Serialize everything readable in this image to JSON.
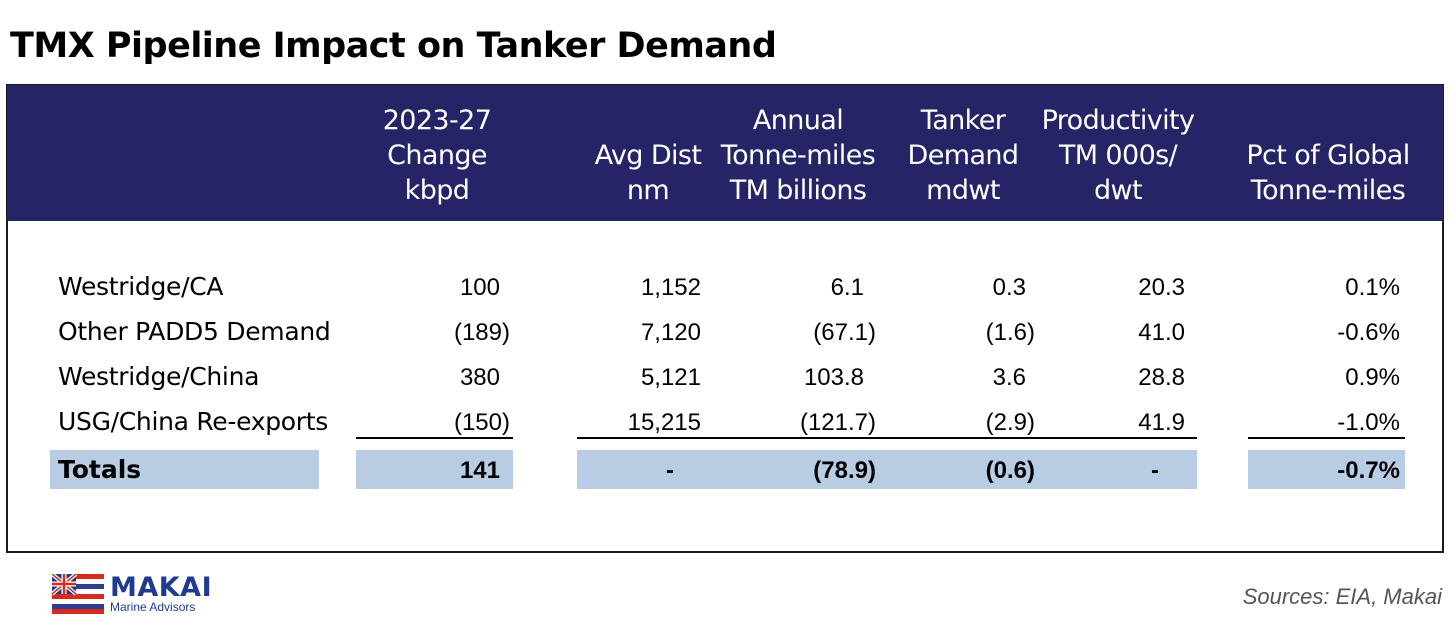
{
  "title": "TMX Pipeline Impact on Tanker Demand",
  "colors": {
    "header_bg": "#242467",
    "totals_bg": "#b8cce4"
  },
  "columns": [
    {
      "lines": [
        "2023-27",
        "Change",
        "kbpd"
      ]
    },
    {
      "lines": [
        "Avg Dist",
        "nm"
      ]
    },
    {
      "lines": [
        "Annual",
        "Tonne-miles",
        "TM billions"
      ]
    },
    {
      "lines": [
        "Tanker",
        "Demand",
        "mdwt"
      ]
    },
    {
      "lines": [
        "Productivity",
        "TM 000s/",
        "dwt"
      ]
    },
    {
      "lines": [
        "Pct of Global",
        "Tonne-miles"
      ]
    }
  ],
  "rows": [
    {
      "label": "Westridge/CA",
      "values": [
        "100",
        "1,152",
        "6.1",
        "0.3",
        "20.3",
        "0.1%"
      ]
    },
    {
      "label": "Other PADD5 Demand",
      "values": [
        "(189)",
        "7,120",
        "(67.1)",
        "(1.6)",
        "41.0",
        "-0.6%"
      ]
    },
    {
      "label": "Westridge/China",
      "values": [
        "380",
        "5,121",
        "103.8",
        "3.6",
        "28.8",
        "0.9%"
      ]
    },
    {
      "label": "USG/China Re-exports",
      "values": [
        "(150)",
        "15,215",
        "(121.7)",
        "(2.9)",
        "41.9",
        "-1.0%"
      ]
    }
  ],
  "totals": {
    "label": "Totals",
    "values": [
      "141",
      "-",
      "(78.9)",
      "(0.6)",
      "-",
      "-0.7%"
    ]
  },
  "logo": {
    "name": "MAKAI",
    "tagline": "Marine Advisors",
    "icon": "hawaii-flag-icon"
  },
  "source": "Sources: EIA, Makai"
}
